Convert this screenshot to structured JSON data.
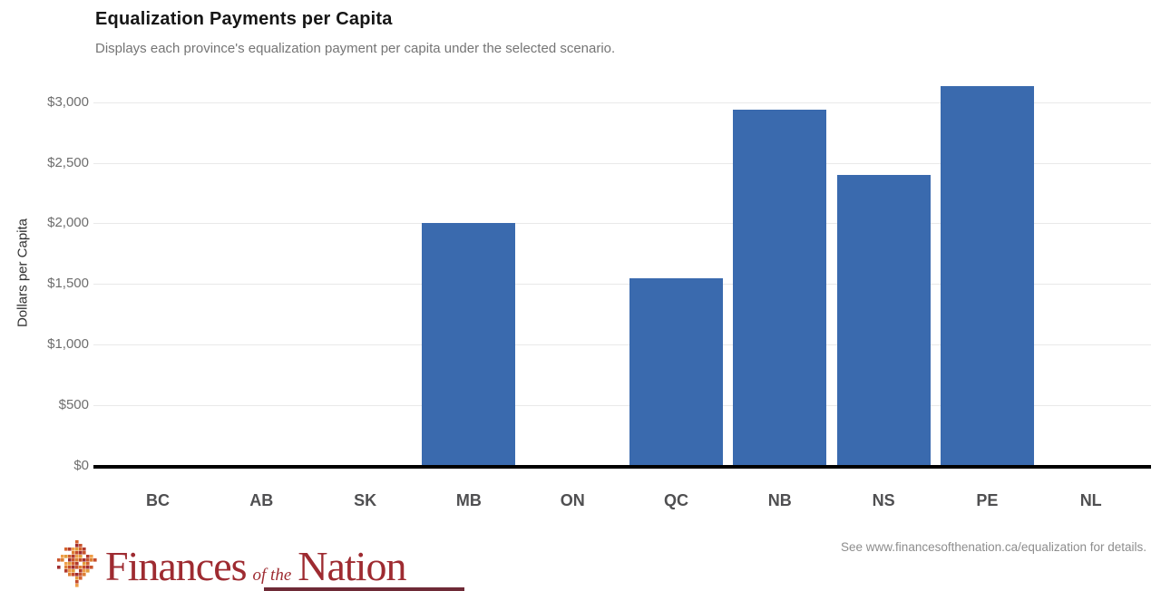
{
  "chart_data": {
    "type": "bar",
    "title": "Equalization Payments per Capita",
    "subtitle": "Displays each province's equalization payment per capita under the selected scenario.",
    "categories": [
      "BC",
      "AB",
      "SK",
      "MB",
      "ON",
      "QC",
      "NB",
      "NS",
      "PE",
      "NL"
    ],
    "values": [
      0,
      0,
      0,
      2000,
      0,
      1550,
      2940,
      2400,
      3130,
      0
    ],
    "xlabel": "",
    "ylabel": "Dollars per Capita",
    "ylim": [
      0,
      3150
    ],
    "yticks": [
      {
        "label": "$0",
        "value": 0
      },
      {
        "label": "$500",
        "value": 500
      },
      {
        "label": "$1,000",
        "value": 1000
      },
      {
        "label": "$1,500",
        "value": 1500
      },
      {
        "label": "$2,000",
        "value": 2000
      },
      {
        "label": "$2,500",
        "value": 2500
      },
      {
        "label": "$3,000",
        "value": 3000
      }
    ],
    "grid": "horizontal-light",
    "legend": "none",
    "bar_color": "#3a6aae"
  },
  "footer": {
    "logo": {
      "word1": "Finances",
      "word2": "of the",
      "word3": "Nation",
      "icon": "maple-leaf-mosaic-icon",
      "brand_color": "#9e2b31"
    },
    "note": "See www.financesofthenation.ca/equalization for details."
  },
  "colors": {
    "background": "#ffffff",
    "bar": "#3a6aae",
    "title": "#161616",
    "subtitle": "#757575",
    "y_tick": "#6e6e6e",
    "x_tick": "#4f4f51",
    "gridline": "#e9e9e9",
    "axis_line": "#000000",
    "brand_red": "#9e2b31",
    "note": "#8d8d8d",
    "leaf_palette": [
      "#e39b3b",
      "#dd7f35",
      "#d4622f",
      "#c54b2c",
      "#b23a2c",
      "#a02e30",
      "#ef9f4a",
      "#c9552e"
    ]
  }
}
